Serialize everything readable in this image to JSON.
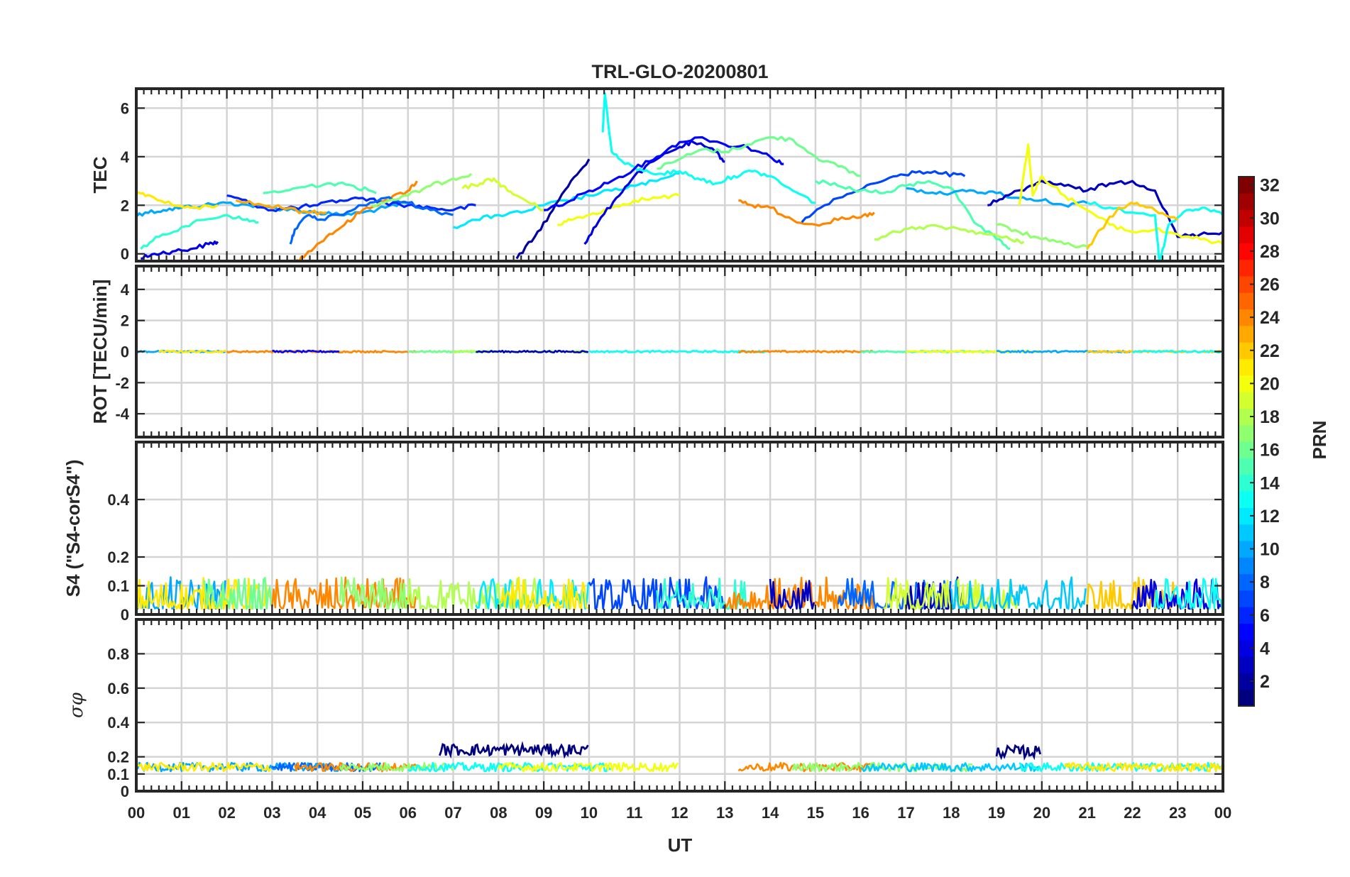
{
  "chart_data": {
    "type": "line",
    "title": "TRL-GLO-20200801",
    "xlabel": "UT",
    "x_tick_labels": [
      "00",
      "01",
      "02",
      "03",
      "04",
      "05",
      "06",
      "07",
      "08",
      "09",
      "10",
      "11",
      "12",
      "13",
      "14",
      "15",
      "16",
      "17",
      "18",
      "19",
      "20",
      "21",
      "22",
      "23",
      "00"
    ],
    "xlim": [
      0,
      24
    ],
    "grid": true,
    "colorbar": {
      "label": "PRN",
      "range": [
        1,
        32
      ],
      "ticks": [
        2,
        4,
        6,
        8,
        10,
        12,
        14,
        16,
        18,
        20,
        22,
        24,
        26,
        28,
        30,
        32
      ],
      "tick_labels": [
        "2",
        "4",
        "6",
        "8",
        "10",
        "12",
        "14",
        "16",
        "18",
        "20",
        "22",
        "24",
        "26",
        "28",
        "30",
        "32"
      ],
      "colormap": "jet",
      "color_stops": [
        "#00007f",
        "#0000ff",
        "#007fff",
        "#00ffff",
        "#7fff7f",
        "#ffff00",
        "#ff7f00",
        "#ff0000",
        "#7f0000"
      ]
    },
    "panels": [
      {
        "name": "tec",
        "ylabel": "TEC",
        "ylim": [
          -0.3,
          6.8
        ],
        "y_ticks": [
          0,
          2,
          4,
          6
        ],
        "y_tick_labels": [
          "0",
          "2",
          "4",
          "6"
        ],
        "series": [
          {
            "prn": 10,
            "x": [
              0.0,
              0.2,
              0.6,
              1.0,
              1.5,
              2.0,
              2.5,
              3.0,
              3.5,
              4.0,
              4.5,
              5.0,
              5.5,
              6.0
            ],
            "y": [
              1.6,
              1.7,
              1.8,
              1.9,
              2.0,
              2.1,
              2.0,
              1.9,
              1.8,
              1.7,
              1.6,
              1.7,
              1.9,
              2.1
            ]
          },
          {
            "prn": 21,
            "x": [
              0.0,
              0.3,
              0.8,
              1.2,
              1.8
            ],
            "y": [
              2.5,
              2.4,
              2.0,
              1.9,
              2.0
            ]
          },
          {
            "prn": 4,
            "x": [
              0.1,
              0.4,
              0.8,
              1.2,
              1.6,
              1.8
            ],
            "y": [
              -0.2,
              0.0,
              0.1,
              0.2,
              0.4,
              0.5
            ]
          },
          {
            "prn": 14,
            "x": [
              0.1,
              0.5,
              1.0,
              1.5,
              2.0,
              2.4,
              2.7
            ],
            "y": [
              0.2,
              0.7,
              1.1,
              1.4,
              1.6,
              1.4,
              1.3
            ]
          },
          {
            "prn": 6,
            "x": [
              2.0,
              2.5,
              3.0,
              3.5,
              4.0,
              4.5,
              5.0,
              5.5,
              6.0,
              6.5,
              7.0,
              7.5
            ],
            "y": [
              2.4,
              2.1,
              1.8,
              1.9,
              2.0,
              2.2,
              2.3,
              2.1,
              2.0,
              1.9,
              1.8,
              2.0
            ]
          },
          {
            "prn": 15,
            "x": [
              2.8,
              3.3,
              3.8,
              4.3,
              4.8,
              5.3
            ],
            "y": [
              2.5,
              2.6,
              2.8,
              2.9,
              2.8,
              2.5
            ]
          },
          {
            "prn": 24,
            "x": [
              3.5,
              3.8,
              4.2,
              4.6,
              5.0,
              5.5,
              6.0,
              6.2
            ],
            "y": [
              -0.4,
              0.1,
              0.7,
              1.2,
              1.8,
              2.2,
              2.6,
              3.0
            ]
          },
          {
            "prn": 8,
            "x": [
              3.4,
              3.5,
              3.8,
              4.0,
              4.5,
              5.0,
              5.5,
              6.0,
              6.5,
              7.0
            ],
            "y": [
              0.4,
              1.0,
              1.6,
              1.4,
              1.6,
              2.0,
              2.3,
              2.1,
              1.8,
              1.6
            ]
          },
          {
            "prn": 17,
            "x": [
              5.2,
              5.6,
              6.0,
              6.5,
              7.0,
              7.4
            ],
            "y": [
              2.0,
              2.2,
              2.4,
              2.8,
              3.1,
              3.3
            ]
          },
          {
            "prn": 23,
            "x": [
              2.2,
              2.8,
              3.2,
              3.8,
              4.2
            ],
            "y": [
              2.2,
              2.0,
              1.9,
              1.7,
              1.7
            ]
          },
          {
            "prn": 12,
            "x": [
              7.0,
              7.5,
              8.0,
              8.5,
              9.0,
              9.5,
              10.0,
              10.5,
              11.0,
              11.5,
              12.0
            ],
            "y": [
              1.1,
              1.4,
              1.6,
              1.7,
              2.0,
              2.2,
              2.4,
              2.6,
              2.8,
              3.0,
              3.3
            ]
          },
          {
            "prn": 19,
            "x": [
              7.2,
              7.6,
              7.9,
              8.2,
              8.6,
              9.0
            ],
            "y": [
              2.7,
              2.9,
              3.1,
              2.6,
              2.2,
              1.8
            ]
          },
          {
            "prn": 20,
            "x": [
              9.3,
              9.6,
              10.0,
              10.5,
              11.0,
              11.5,
              12.0
            ],
            "y": [
              1.2,
              1.4,
              1.6,
              1.9,
              2.2,
              2.3,
              2.4
            ]
          },
          {
            "prn": 2,
            "x": [
              8.4,
              8.8,
              9.2,
              9.6,
              10.0
            ],
            "y": [
              -0.2,
              0.7,
              1.8,
              3.0,
              3.9
            ]
          },
          {
            "prn": 4,
            "x": [
              9.9,
              10.2,
              10.6,
              11.0,
              11.5,
              12.0,
              12.3,
              12.8,
              13.0
            ],
            "y": [
              0.4,
              1.3,
              2.3,
              3.2,
              3.9,
              4.4,
              4.6,
              4.2,
              3.8
            ]
          },
          {
            "prn": 13,
            "x": [
              10.3,
              10.35,
              10.5,
              10.8,
              11.2,
              11.6,
              12.0,
              12.4,
              12.8,
              13.2,
              13.6,
              14.0,
              14.5,
              15.0
            ],
            "y": [
              5.0,
              6.6,
              4.2,
              3.7,
              3.4,
              3.3,
              3.4,
              3.1,
              2.9,
              3.2,
              3.4,
              3.2,
              2.6,
              2.1
            ]
          },
          {
            "prn": 5,
            "x": [
              9.0,
              9.5,
              10.0,
              10.5,
              11.0,
              11.5,
              12.0,
              12.5,
              13.0,
              13.5,
              14.0,
              14.3
            ],
            "y": [
              1.8,
              2.1,
              2.6,
              3.0,
              3.5,
              4.0,
              4.6,
              4.8,
              4.5,
              4.4,
              4.0,
              3.7
            ]
          },
          {
            "prn": 16,
            "x": [
              11.5,
              12.0,
              12.5,
              13.0,
              13.5,
              14.0,
              14.5,
              15.0,
              15.5,
              16.0
            ],
            "y": [
              3.5,
              3.9,
              4.3,
              4.2,
              4.5,
              4.8,
              4.7,
              4.0,
              3.6,
              3.2
            ]
          },
          {
            "prn": 24,
            "x": [
              13.3,
              13.6,
              14.0,
              14.5,
              15.0,
              15.5,
              16.0,
              16.3
            ],
            "y": [
              2.2,
              2.0,
              1.9,
              1.4,
              1.2,
              1.4,
              1.5,
              1.7
            ]
          },
          {
            "prn": 7,
            "x": [
              14.7,
              15.2,
              15.8,
              16.3,
              16.8,
              17.3,
              17.8,
              18.3
            ],
            "y": [
              1.3,
              2.0,
              2.5,
              2.9,
              3.2,
              3.4,
              3.3,
              3.2
            ]
          },
          {
            "prn": 15,
            "x": [
              15.0,
              15.5,
              16.0,
              16.5,
              17.0,
              17.5,
              18.0,
              18.5,
              19.0,
              19.3
            ],
            "y": [
              3.0,
              2.8,
              2.6,
              2.5,
              2.8,
              3.0,
              2.7,
              1.3,
              0.6,
              0.2
            ]
          },
          {
            "prn": 18,
            "x": [
              16.3,
              16.8,
              17.3,
              17.8,
              18.3,
              18.8,
              19.3,
              19.6
            ],
            "y": [
              0.6,
              0.9,
              1.1,
              1.1,
              1.0,
              0.8,
              0.6,
              0.5
            ]
          },
          {
            "prn": 10,
            "x": [
              17.0,
              17.5,
              18.0,
              18.5,
              19.0,
              19.5,
              20.0,
              20.5,
              21.0
            ],
            "y": [
              2.7,
              2.5,
              2.5,
              2.6,
              2.5,
              2.3,
              2.2,
              2.0,
              2.1
            ]
          },
          {
            "prn": 3,
            "x": [
              18.8,
              19.2,
              19.6,
              20.0,
              20.5,
              21.0,
              21.5,
              22.0,
              22.5,
              23.0,
              23.5,
              24.0
            ],
            "y": [
              2.0,
              2.4,
              2.6,
              3.0,
              2.8,
              2.6,
              2.9,
              3.0,
              2.6,
              0.7,
              0.8,
              0.9
            ]
          },
          {
            "prn": 20,
            "x": [
              19.5,
              19.7,
              19.8,
              20.0,
              20.5,
              21.0,
              21.5,
              22.0,
              22.5,
              23.0,
              23.5,
              24.0
            ],
            "y": [
              2.0,
              4.5,
              2.4,
              3.2,
              2.4,
              1.8,
              1.2,
              0.9,
              1.0,
              0.8,
              0.6,
              0.4
            ]
          },
          {
            "prn": 13,
            "x": [
              21.0,
              21.5,
              22.0,
              22.5,
              22.6,
              22.8,
              23.2,
              23.6,
              24.0
            ],
            "y": [
              2.1,
              1.9,
              1.7,
              1.6,
              -0.4,
              1.2,
              1.8,
              1.9,
              1.6
            ]
          },
          {
            "prn": 22,
            "x": [
              21.0,
              21.3,
              21.7,
              22.1,
              22.5,
              23.0
            ],
            "y": [
              0.2,
              1.0,
              1.9,
              2.1,
              1.8,
              1.4
            ]
          },
          {
            "prn": 17,
            "x": [
              19.0,
              19.5,
              20.0,
              20.5,
              21.0
            ],
            "y": [
              1.2,
              0.9,
              0.6,
              0.4,
              0.3
            ]
          }
        ]
      },
      {
        "name": "rot",
        "ylabel": "ROT [TECU/min]",
        "ylim": [
          -5.5,
          5.5
        ],
        "y_ticks": [
          -4,
          -2,
          0,
          2,
          4
        ],
        "y_tick_labels": [
          "-4",
          "-2",
          "0",
          "2",
          "4"
        ],
        "baseline": 0,
        "amplitude": 0.12,
        "segments": [
          {
            "prn": 10,
            "x0": 0.0,
            "x1": 2.0
          },
          {
            "prn": 21,
            "x0": 0.5,
            "x1": 2.0
          },
          {
            "prn": 24,
            "x0": 2.0,
            "x1": 6.2
          },
          {
            "prn": 5,
            "x0": 3.0,
            "x1": 4.5
          },
          {
            "prn": 16,
            "x0": 6.0,
            "x1": 8.0
          },
          {
            "prn": 18,
            "x0": 7.0,
            "x1": 10.0
          },
          {
            "prn": 3,
            "x0": 7.5,
            "x1": 10.0
          },
          {
            "prn": 13,
            "x0": 10.0,
            "x1": 14.0
          },
          {
            "prn": 24,
            "x0": 13.3,
            "x1": 16.3
          },
          {
            "prn": 15,
            "x0": 16.0,
            "x1": 19.0
          },
          {
            "prn": 20,
            "x0": 17.0,
            "x1": 20.0
          },
          {
            "prn": 10,
            "x0": 19.0,
            "x1": 22.0
          },
          {
            "prn": 22,
            "x0": 21.0,
            "x1": 24.0
          },
          {
            "prn": 13,
            "x0": 22.0,
            "x1": 24.0
          }
        ]
      },
      {
        "name": "s4",
        "ylabel": "S4 (\"S4-corS4\")",
        "ylim": [
          0,
          0.6
        ],
        "y_ticks": [
          0,
          0.1,
          0.2,
          0.4
        ],
        "y_tick_labels": [
          "0",
          "0.1",
          "0.2",
          "0.4"
        ],
        "baseline": 0.02,
        "amplitude": 0.11,
        "segments": [
          {
            "prn": 10,
            "x0": 0.0,
            "x1": 2.0
          },
          {
            "prn": 21,
            "x0": 0.0,
            "x1": 3.0
          },
          {
            "prn": 16,
            "x0": 1.5,
            "x1": 3.0
          },
          {
            "prn": 24,
            "x0": 3.0,
            "x1": 6.2
          },
          {
            "prn": 17,
            "x0": 4.5,
            "x1": 6.0
          },
          {
            "prn": 18,
            "x0": 6.0,
            "x1": 9.0
          },
          {
            "prn": 12,
            "x0": 7.5,
            "x1": 10.0
          },
          {
            "prn": 21,
            "x0": 8.0,
            "x1": 10.0
          },
          {
            "prn": 7,
            "x0": 10.0,
            "x1": 13.0
          },
          {
            "prn": 14,
            "x0": 11.5,
            "x1": 13.5
          },
          {
            "prn": 24,
            "x0": 13.0,
            "x1": 16.3
          },
          {
            "prn": 3,
            "x0": 14.0,
            "x1": 15.0
          },
          {
            "prn": 8,
            "x0": 15.5,
            "x1": 18.0
          },
          {
            "prn": 3,
            "x0": 17.0,
            "x1": 18.5
          },
          {
            "prn": 19,
            "x0": 16.5,
            "x1": 19.5
          },
          {
            "prn": 11,
            "x0": 18.0,
            "x1": 21.0
          },
          {
            "prn": 22,
            "x0": 21.0,
            "x1": 23.0
          },
          {
            "prn": 4,
            "x0": 22.0,
            "x1": 24.0
          },
          {
            "prn": 13,
            "x0": 22.5,
            "x1": 24.0
          }
        ]
      },
      {
        "name": "sigma_phi",
        "ylabel": "σφ",
        "ylim": [
          0,
          1.0
        ],
        "y_ticks": [
          0,
          0.1,
          0.2,
          0.4,
          0.6,
          0.8
        ],
        "y_tick_labels": [
          "0",
          "0.1",
          "0.2",
          "0.4",
          "0.6",
          "0.8"
        ],
        "baseline": 0.14,
        "amplitude": 0.05,
        "segments": [
          {
            "prn": 10,
            "x0": 0.0,
            "x1": 4.5
          },
          {
            "prn": 21,
            "x0": 0.0,
            "x1": 3.0
          },
          {
            "prn": 8,
            "x0": 3.0,
            "x1": 5.5
          },
          {
            "prn": 24,
            "x0": 3.5,
            "x1": 6.2
          },
          {
            "prn": 17,
            "x0": 4.5,
            "x1": 7.0
          },
          {
            "prn": 13,
            "x0": 6.0,
            "x1": 10.5
          },
          {
            "prn": 20,
            "x0": 8.0,
            "x1": 12.0
          },
          {
            "prn": 24,
            "x0": 13.3,
            "x1": 16.3
          },
          {
            "prn": 17,
            "x0": 14.5,
            "x1": 18.5
          },
          {
            "prn": 11,
            "x0": 16.0,
            "x1": 20.0
          },
          {
            "prn": 13,
            "x0": 19.5,
            "x1": 24.0
          },
          {
            "prn": 21,
            "x0": 20.5,
            "x1": 24.0
          }
        ],
        "bursts": [
          {
            "prn": 1,
            "x0": 6.7,
            "x1": 10.0,
            "level": 0.24,
            "amplitude": 0.07
          },
          {
            "prn": 1,
            "x0": 19.0,
            "x1": 20.0,
            "level": 0.23,
            "amplitude": 0.07
          }
        ]
      }
    ]
  }
}
